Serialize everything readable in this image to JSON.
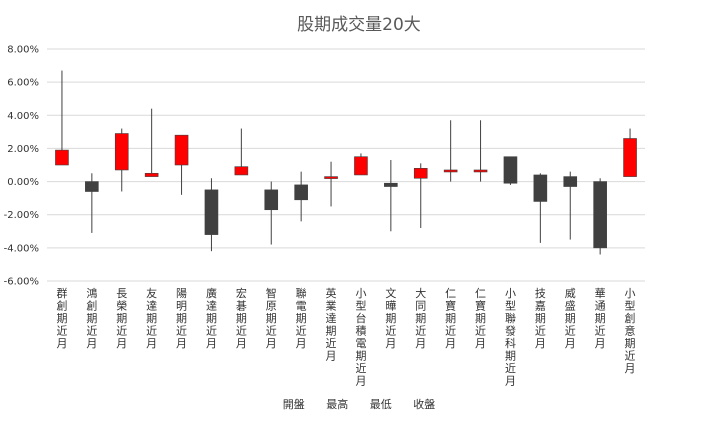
{
  "chart_data": {
    "type": "candlestick",
    "title": "股期成交量20大",
    "ylim": [
      -6,
      8
    ],
    "ytick_step": 2,
    "ytick_labels": [
      "8.00%",
      "6.00%",
      "4.00%",
      "2.00%",
      "0.00%",
      "-2.00%",
      "-4.00%",
      "-6.00%"
    ],
    "legend": [
      "開盤",
      "最高",
      "最低",
      "收盤"
    ],
    "colors": {
      "up": "#ff0000",
      "down": "#404040",
      "wick": "#404040",
      "grid": "#d9d9d9"
    },
    "categories": [
      "群創期近月",
      "鴻創期近月",
      "長榮期近月",
      "友達期近月",
      "陽明期近月",
      "廣達期近月",
      "宏碁期近月",
      "智原期近月",
      "聯電期近月",
      "英業達期近月",
      "小型台積電期近月",
      "文曄期近月",
      "大同期近月",
      "仁寶期近月",
      "仁寶期近月",
      "小型聯發科期近月",
      "技嘉期近月",
      "威盛期近月",
      "華通期近月",
      "小型創意期近月"
    ],
    "series": [
      {
        "name": "開盤",
        "values": [
          1.0,
          0.0,
          0.7,
          0.3,
          1.0,
          -0.5,
          0.4,
          -0.5,
          -0.2,
          0.2,
          0.4,
          -0.1,
          0.2,
          0.6,
          0.6,
          1.5,
          0.4,
          0.3,
          0.0,
          0.3
        ]
      },
      {
        "name": "最高",
        "values": [
          6.7,
          0.5,
          3.2,
          4.4,
          2.8,
          0.2,
          3.2,
          0.0,
          0.6,
          1.2,
          1.7,
          1.3,
          1.1,
          3.7,
          3.7,
          1.5,
          0.5,
          0.6,
          0.2,
          3.2
        ]
      },
      {
        "name": "最低",
        "values": [
          1.0,
          -3.1,
          -0.6,
          0.3,
          -0.8,
          -4.2,
          0.4,
          -3.8,
          -2.4,
          -1.5,
          0.4,
          -3.0,
          -2.8,
          0.0,
          0.0,
          -0.2,
          -3.7,
          -3.5,
          -4.4,
          0.3
        ]
      },
      {
        "name": "收盤",
        "values": [
          1.9,
          -0.6,
          2.9,
          0.5,
          2.8,
          -3.2,
          0.9,
          -1.7,
          -1.1,
          0.3,
          1.5,
          -0.3,
          0.8,
          0.7,
          0.7,
          -0.1,
          -1.2,
          -0.3,
          -4.0,
          2.6
        ]
      }
    ]
  }
}
